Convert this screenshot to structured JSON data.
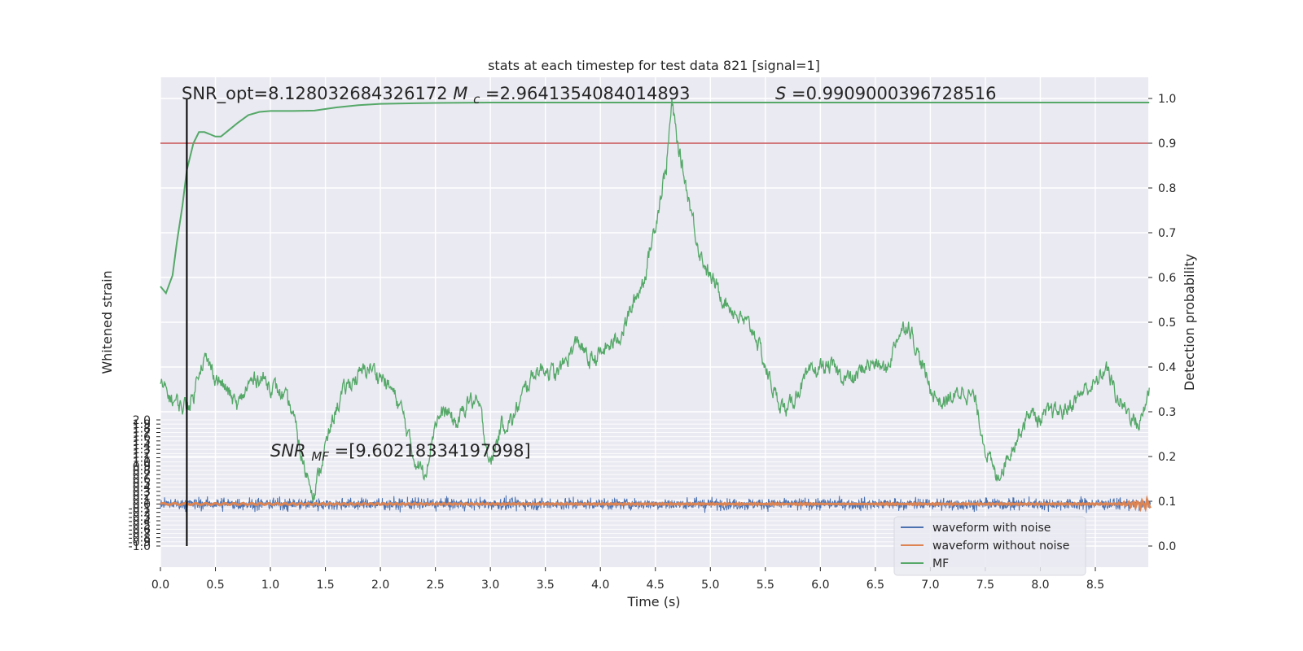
{
  "chart_data": {
    "type": "line",
    "title": "stats at each timestep for test data 821 [signal=1]",
    "xlabel": "Time (s)",
    "ylabel_left": "Whitened strain",
    "ylabel_right": "Detection probability",
    "xlim": [
      0,
      9.0
    ],
    "ylim_left": [
      -1.0,
      2.0
    ],
    "ylim_right": [
      0.0,
      1.0
    ],
    "x_ticks": [
      "0.0",
      "0.5",
      "1.0",
      "1.5",
      "2.0",
      "2.5",
      "3.0",
      "3.5",
      "4.0",
      "4.5",
      "5.0",
      "5.5",
      "6.0",
      "6.5",
      "7.0",
      "7.5",
      "8.0",
      "8.5"
    ],
    "y_ticks_right": [
      "0.0",
      "0.1",
      "0.2",
      "0.3",
      "0.4",
      "0.5",
      "0.6",
      "0.7",
      "0.8",
      "0.9",
      "1.0"
    ],
    "y_ticks_left": [
      "-1.0",
      "-0.9",
      "-0.8",
      "-0.7",
      "-0.6",
      "-0.5",
      "-0.4",
      "-0.3",
      "-0.2",
      "-0.1",
      "0.0",
      "0.1",
      "0.2",
      "0.3",
      "0.4",
      "0.5",
      "0.6",
      "0.7",
      "0.8",
      "0.9",
      "1.0",
      "1.1",
      "1.2",
      "1.3",
      "1.4",
      "1.5",
      "1.6",
      "1.7",
      "1.8",
      "1.9",
      "2.0"
    ],
    "annotations": {
      "snr_opt": "SNR_opt=8.128032684326172",
      "mc_prefix": "M",
      "mc_sub": "c",
      "mc_value": "=2.9641354084014893",
      "s_prefix": "S",
      "s_value": "=0.9909000396728516",
      "snr_mf_prefix": "SNR",
      "snr_mf_sub": "MF",
      "snr_mf_value": "=[9.60218334197998]"
    },
    "threshold": 0.9,
    "marker_time": 0.24,
    "series": [
      {
        "name": "waveform with noise",
        "color": "#4c72b0",
        "axis": "left",
        "description_values": "noise amplitude ~ +/-0.3 strain around 0"
      },
      {
        "name": "waveform without noise",
        "color": "#dd8452",
        "axis": "left",
        "description_values": "near 0 strain, chirp at ~8.9 s"
      },
      {
        "name": "MF",
        "color": "#55a868",
        "axis": "right",
        "x": [
          0.0,
          0.05,
          0.11,
          0.15,
          0.2,
          0.24,
          0.3,
          0.35,
          0.4,
          0.45,
          0.5,
          0.55,
          0.6,
          0.7,
          0.8,
          0.9,
          1.0,
          1.2,
          1.4,
          1.6,
          1.8,
          2.0,
          2.5,
          3.0,
          4.0,
          5.0,
          6.0,
          7.0,
          8.0,
          8.99
        ],
        "values": [
          0.58,
          0.565,
          0.605,
          0.68,
          0.76,
          0.84,
          0.9,
          0.925,
          0.925,
          0.92,
          0.915,
          0.915,
          0.925,
          0.945,
          0.963,
          0.97,
          0.972,
          0.972,
          0.973,
          0.98,
          0.985,
          0.988,
          0.99,
          0.991,
          0.991,
          0.991,
          0.991,
          0.991,
          0.991,
          0.991
        ]
      },
      {
        "name": "detection (unlabelled green trace)",
        "color": "#55a868",
        "axis": "right",
        "x": [
          0.0,
          0.1,
          0.2,
          0.3,
          0.35,
          0.4,
          0.5,
          0.6,
          0.7,
          0.8,
          0.9,
          1.0,
          1.1,
          1.2,
          1.3,
          1.4,
          1.5,
          1.6,
          1.7,
          1.8,
          1.9,
          2.0,
          2.1,
          2.2,
          2.3,
          2.4,
          2.5,
          2.6,
          2.7,
          2.8,
          2.9,
          3.0,
          3.1,
          3.2,
          3.3,
          3.4,
          3.5,
          3.6,
          3.7,
          3.8,
          3.9,
          4.0,
          4.1,
          4.2,
          4.3,
          4.4,
          4.5,
          4.6,
          4.65,
          4.7,
          4.8,
          4.9,
          5.0,
          5.1,
          5.2,
          5.3,
          5.4,
          5.5,
          5.6,
          5.7,
          5.8,
          5.9,
          6.0,
          6.1,
          6.2,
          6.3,
          6.4,
          6.5,
          6.6,
          6.7,
          6.8,
          6.9,
          7.0,
          7.1,
          7.2,
          7.3,
          7.4,
          7.5,
          7.6,
          7.7,
          7.8,
          7.9,
          8.0,
          8.1,
          8.2,
          8.3,
          8.4,
          8.5,
          8.6,
          8.7,
          8.8,
          8.9,
          8.99
        ],
        "values": [
          0.36,
          0.33,
          0.31,
          0.33,
          0.4,
          0.42,
          0.38,
          0.35,
          0.31,
          0.36,
          0.38,
          0.36,
          0.34,
          0.3,
          0.18,
          0.12,
          0.22,
          0.31,
          0.36,
          0.38,
          0.4,
          0.38,
          0.35,
          0.3,
          0.2,
          0.16,
          0.28,
          0.3,
          0.27,
          0.33,
          0.31,
          0.18,
          0.27,
          0.28,
          0.34,
          0.39,
          0.4,
          0.38,
          0.42,
          0.46,
          0.41,
          0.43,
          0.45,
          0.48,
          0.54,
          0.6,
          0.72,
          0.85,
          0.99,
          0.9,
          0.78,
          0.66,
          0.6,
          0.56,
          0.53,
          0.5,
          0.48,
          0.4,
          0.33,
          0.3,
          0.35,
          0.38,
          0.4,
          0.4,
          0.38,
          0.37,
          0.4,
          0.41,
          0.39,
          0.47,
          0.5,
          0.42,
          0.35,
          0.32,
          0.33,
          0.35,
          0.33,
          0.22,
          0.15,
          0.2,
          0.25,
          0.3,
          0.28,
          0.3,
          0.3,
          0.32,
          0.35,
          0.36,
          0.4,
          0.33,
          0.3,
          0.27,
          0.35
        ]
      }
    ],
    "legend": {
      "placement": "lower-right",
      "entries": [
        "waveform with noise",
        "waveform without noise",
        "MF"
      ]
    },
    "grid": true,
    "colors": {
      "axes_bg": "#eaeaf2",
      "grid": "#ffffff",
      "threshold": "#c44e52",
      "marker": "#000000"
    }
  }
}
